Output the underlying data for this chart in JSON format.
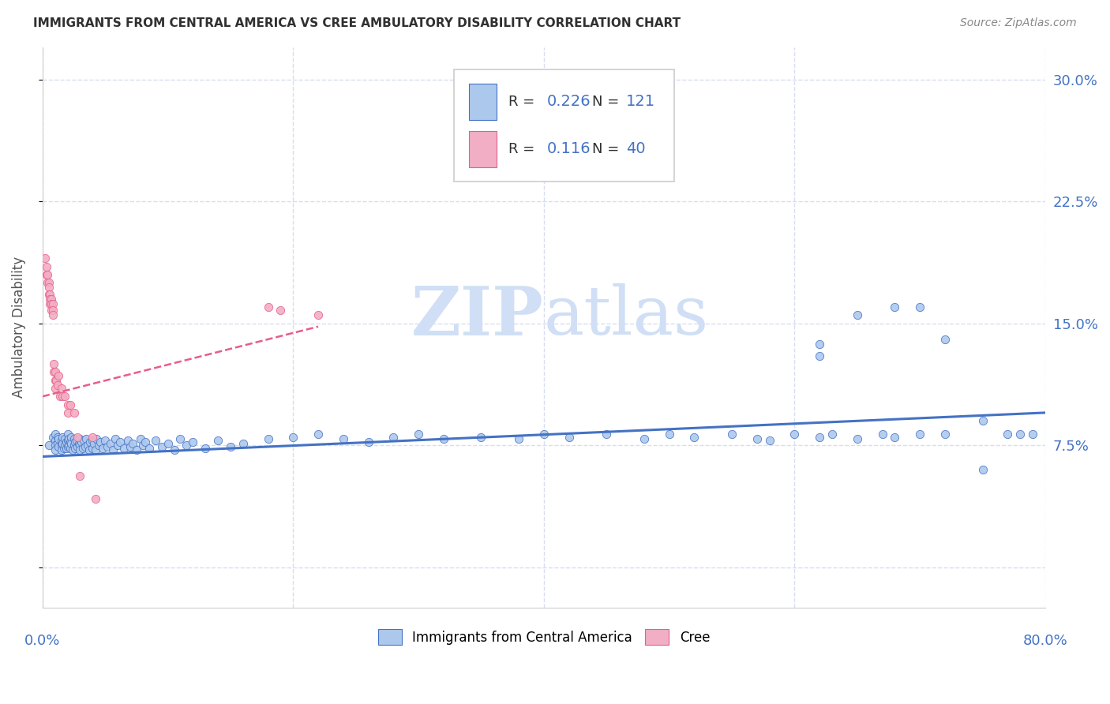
{
  "title": "IMMIGRANTS FROM CENTRAL AMERICA VS CREE AMBULATORY DISABILITY CORRELATION CHART",
  "source": "Source: ZipAtlas.com",
  "ylabel": "Ambulatory Disability",
  "yticks": [
    0.0,
    0.075,
    0.15,
    0.225,
    0.3
  ],
  "ytick_labels": [
    "",
    "7.5%",
    "15.0%",
    "22.5%",
    "30.0%"
  ],
  "xlim": [
    0.0,
    0.8
  ],
  "ylim": [
    -0.025,
    0.32
  ],
  "blue_R": "0.226",
  "blue_N": "121",
  "pink_R": "0.116",
  "pink_N": "40",
  "blue_color": "#adc8ed",
  "pink_color": "#f2aec4",
  "blue_line_color": "#4472c4",
  "pink_line_color": "#e85d8a",
  "watermark_color": "#d0dff5",
  "blue_scatter_x": [
    0.005,
    0.008,
    0.01,
    0.01,
    0.01,
    0.01,
    0.012,
    0.012,
    0.013,
    0.013,
    0.015,
    0.015,
    0.015,
    0.016,
    0.016,
    0.017,
    0.018,
    0.018,
    0.019,
    0.019,
    0.02,
    0.02,
    0.02,
    0.021,
    0.021,
    0.022,
    0.022,
    0.023,
    0.023,
    0.024,
    0.025,
    0.025,
    0.026,
    0.026,
    0.027,
    0.028,
    0.029,
    0.03,
    0.03,
    0.03,
    0.031,
    0.032,
    0.033,
    0.034,
    0.035,
    0.036,
    0.037,
    0.038,
    0.04,
    0.04,
    0.041,
    0.042,
    0.043,
    0.045,
    0.046,
    0.048,
    0.05,
    0.052,
    0.054,
    0.056,
    0.058,
    0.06,
    0.062,
    0.065,
    0.068,
    0.07,
    0.072,
    0.075,
    0.078,
    0.08,
    0.082,
    0.085,
    0.09,
    0.095,
    0.1,
    0.105,
    0.11,
    0.115,
    0.12,
    0.13,
    0.14,
    0.15,
    0.16,
    0.18,
    0.2,
    0.22,
    0.24,
    0.26,
    0.28,
    0.3,
    0.32,
    0.35,
    0.38,
    0.4,
    0.42,
    0.45,
    0.48,
    0.5,
    0.52,
    0.55,
    0.57,
    0.58,
    0.6,
    0.62,
    0.63,
    0.65,
    0.67,
    0.68,
    0.7,
    0.72,
    0.75,
    0.77,
    0.78,
    0.79,
    0.62,
    0.62,
    0.65,
    0.68,
    0.7,
    0.72,
    0.75
  ],
  "blue_scatter_y": [
    0.075,
    0.08,
    0.082,
    0.078,
    0.075,
    0.072,
    0.08,
    0.076,
    0.079,
    0.074,
    0.078,
    0.075,
    0.072,
    0.08,
    0.076,
    0.073,
    0.079,
    0.075,
    0.077,
    0.073,
    0.082,
    0.078,
    0.074,
    0.079,
    0.075,
    0.077,
    0.073,
    0.08,
    0.076,
    0.072,
    0.079,
    0.075,
    0.077,
    0.073,
    0.078,
    0.074,
    0.076,
    0.079,
    0.075,
    0.072,
    0.077,
    0.073,
    0.078,
    0.074,
    0.079,
    0.075,
    0.072,
    0.077,
    0.078,
    0.073,
    0.076,
    0.072,
    0.079,
    0.075,
    0.077,
    0.073,
    0.078,
    0.074,
    0.076,
    0.072,
    0.079,
    0.075,
    0.077,
    0.073,
    0.078,
    0.074,
    0.076,
    0.072,
    0.079,
    0.075,
    0.077,
    0.073,
    0.078,
    0.074,
    0.076,
    0.072,
    0.079,
    0.075,
    0.077,
    0.073,
    0.078,
    0.074,
    0.076,
    0.079,
    0.08,
    0.082,
    0.079,
    0.077,
    0.08,
    0.082,
    0.079,
    0.08,
    0.079,
    0.082,
    0.08,
    0.082,
    0.079,
    0.082,
    0.08,
    0.082,
    0.079,
    0.078,
    0.082,
    0.08,
    0.082,
    0.079,
    0.082,
    0.08,
    0.082,
    0.082,
    0.09,
    0.082,
    0.082,
    0.082,
    0.137,
    0.13,
    0.155,
    0.16,
    0.16,
    0.14,
    0.06
  ],
  "pink_scatter_x": [
    0.002,
    0.003,
    0.003,
    0.004,
    0.004,
    0.005,
    0.005,
    0.005,
    0.006,
    0.006,
    0.006,
    0.007,
    0.007,
    0.007,
    0.008,
    0.008,
    0.008,
    0.009,
    0.009,
    0.01,
    0.01,
    0.01,
    0.011,
    0.012,
    0.013,
    0.014,
    0.015,
    0.016,
    0.018,
    0.02,
    0.02,
    0.022,
    0.025,
    0.028,
    0.03,
    0.04,
    0.042,
    0.18,
    0.19,
    0.22
  ],
  "pink_scatter_y": [
    0.19,
    0.185,
    0.18,
    0.18,
    0.175,
    0.175,
    0.172,
    0.168,
    0.168,
    0.165,
    0.162,
    0.165,
    0.162,
    0.158,
    0.162,
    0.158,
    0.155,
    0.125,
    0.12,
    0.12,
    0.115,
    0.11,
    0.115,
    0.112,
    0.118,
    0.105,
    0.11,
    0.105,
    0.105,
    0.1,
    0.095,
    0.1,
    0.095,
    0.08,
    0.056,
    0.08,
    0.042,
    0.16,
    0.158,
    0.155
  ],
  "blue_trend_x": [
    0.0,
    0.8
  ],
  "blue_trend_y": [
    0.068,
    0.095
  ],
  "pink_trend_x": [
    0.0,
    0.22
  ],
  "pink_trend_y": [
    0.105,
    0.148
  ],
  "grid_color": "#d8ddf0",
  "title_color": "#303030",
  "tick_color": "#4472c4",
  "xtick_positions": [
    0.0,
    0.2,
    0.4,
    0.6,
    0.8
  ]
}
